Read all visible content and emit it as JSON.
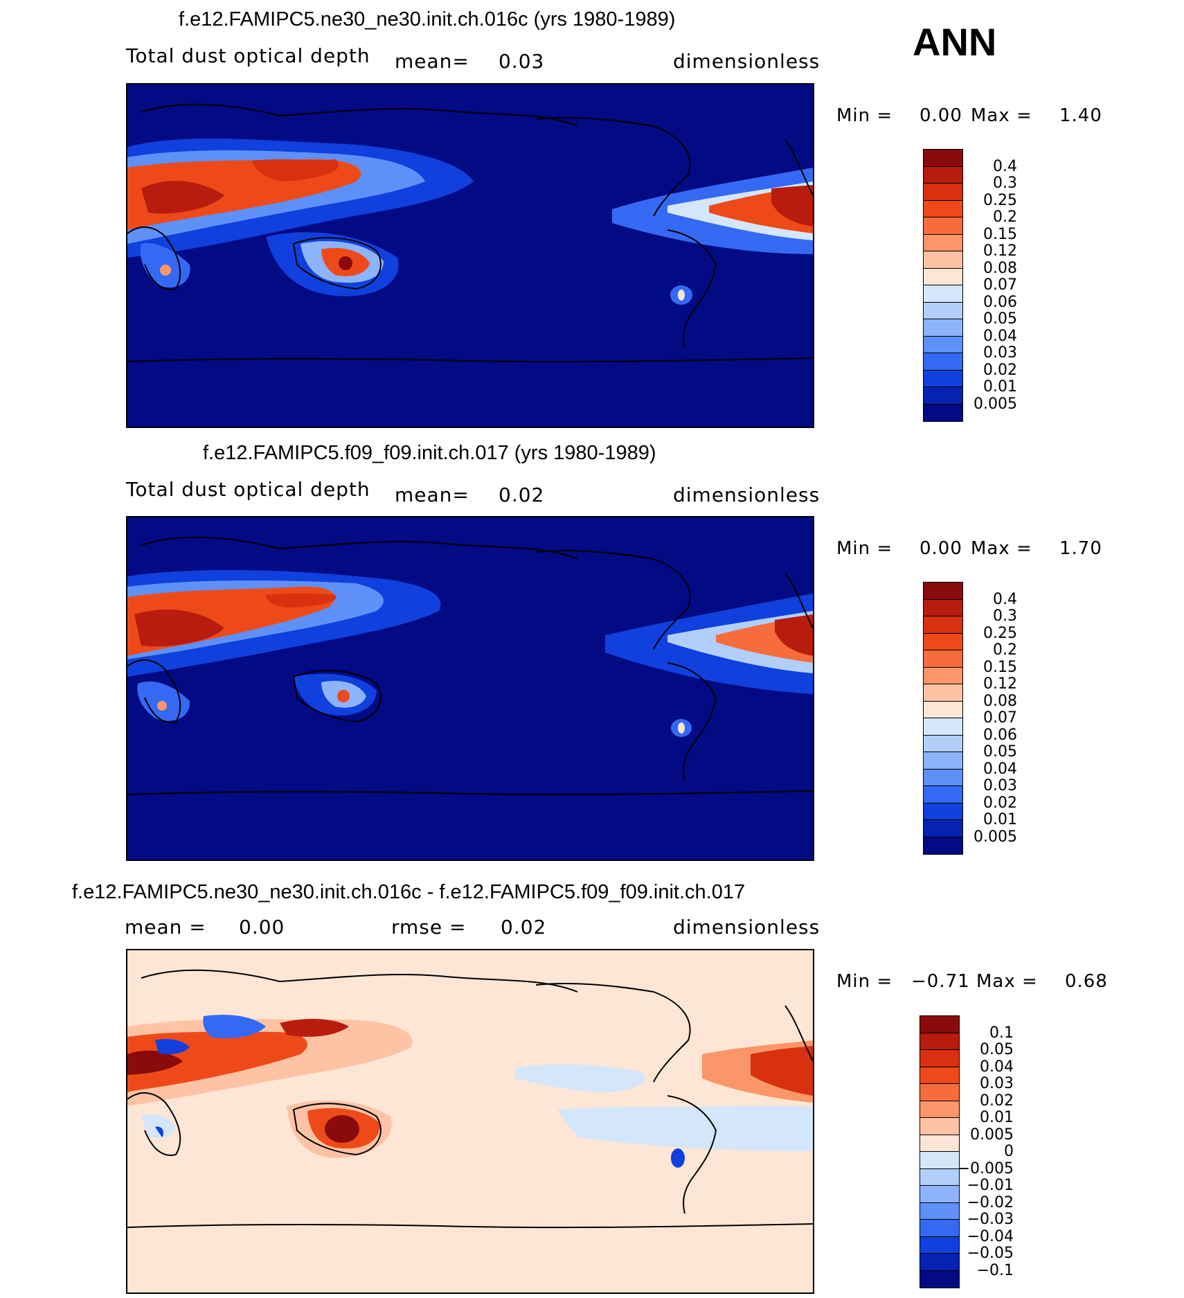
{
  "season": "ANN",
  "panels": [
    {
      "id": "p1",
      "title": "f.e12.FAMIPC5.ne30_ne30.init.ch.016c (yrs 1980-1989)",
      "variable": "Total dust optical depth",
      "mean_label": "mean=",
      "mean_value": "0.03",
      "units": "dimensionless",
      "min_label": "Min =",
      "min_value": "0.00",
      "max_label": "Max =",
      "max_value": "1.40",
      "colorbar_labels": [
        "0.4",
        "0.3",
        "0.25",
        "0.2",
        "0.15",
        "0.12",
        "0.08",
        "0.07",
        "0.06",
        "0.05",
        "0.04",
        "0.03",
        "0.02",
        "0.01",
        "0.005"
      ],
      "colorbar_colors": [
        "#8a0b0b",
        "#b81c0e",
        "#d9300f",
        "#ee4a19",
        "#f66c3d",
        "#fb9668",
        "#fec3a5",
        "#fde6d6",
        "#d4e6fb",
        "#b2cffb",
        "#8db4fb",
        "#5e90f8",
        "#3469f3",
        "#1040dd",
        "#0622b3",
        "#020a84"
      ],
      "dominant_fill": "#020a84"
    },
    {
      "id": "p2",
      "title": "f.e12.FAMIPC5.f09_f09.init.ch.017 (yrs 1980-1989)",
      "variable": "Total dust optical depth",
      "mean_label": "mean=",
      "mean_value": "0.02",
      "units": "dimensionless",
      "min_label": "Min =",
      "min_value": "0.00",
      "max_label": "Max =",
      "max_value": "1.70",
      "colorbar_labels": [
        "0.4",
        "0.3",
        "0.25",
        "0.2",
        "0.15",
        "0.12",
        "0.08",
        "0.07",
        "0.06",
        "0.05",
        "0.04",
        "0.03",
        "0.02",
        "0.01",
        "0.005"
      ],
      "colorbar_colors": [
        "#8a0b0b",
        "#b81c0e",
        "#d9300f",
        "#ee4a19",
        "#f66c3d",
        "#fb9668",
        "#fec3a5",
        "#fde6d6",
        "#d4e6fb",
        "#b2cffb",
        "#8db4fb",
        "#5e90f8",
        "#3469f3",
        "#1040dd",
        "#0622b3",
        "#020a84"
      ],
      "dominant_fill": "#020a84"
    },
    {
      "id": "p3",
      "title": "f.e12.FAMIPC5.ne30_ne30.init.ch.016c - f.e12.FAMIPC5.f09_f09.init.ch.017",
      "mean_label": "mean =",
      "mean_value": "0.00",
      "rmse_label": "rmse =",
      "rmse_value": "0.02",
      "units": "dimensionless",
      "min_label": "Min =",
      "min_value": "−0.71",
      "max_label": "Max =",
      "max_value": "0.68",
      "colorbar_labels": [
        "0.1",
        "0.05",
        "0.04",
        "0.03",
        "0.02",
        "0.01",
        "0.005",
        "0",
        "−0.005",
        "−0.01",
        "−0.02",
        "−0.03",
        "−0.04",
        "−0.05",
        "−0.1"
      ],
      "colorbar_colors": [
        "#8a0b0b",
        "#b81c0e",
        "#d9300f",
        "#ee4a19",
        "#f66c3d",
        "#fb9668",
        "#fec3a5",
        "#fde6d6",
        "#d4e6fb",
        "#b2cffb",
        "#8db4fb",
        "#5e90f8",
        "#3469f3",
        "#1040dd",
        "#0622b3",
        "#020a84"
      ],
      "dominant_fill": "#fde6d6"
    }
  ]
}
